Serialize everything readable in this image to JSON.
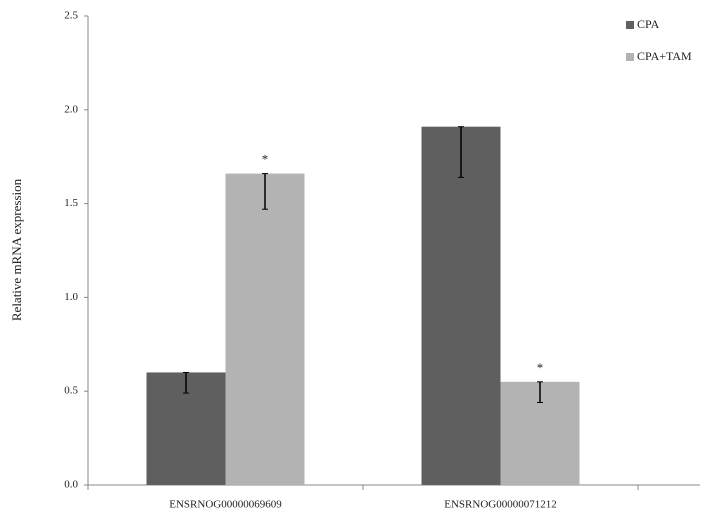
{
  "chart_data": {
    "type": "bar",
    "y_label": "Relative  mRNA expression",
    "categories": [
      "ENSRNOG00000069609",
      "ENSRNOG00000071212"
    ],
    "series": [
      {
        "name": "CPA",
        "color": "#5f5f5f",
        "values": [
          0.6,
          1.91
        ],
        "errors": [
          0.11,
          0.27
        ]
      },
      {
        "name": "CPA+TAM",
        "color": "#b3b3b3",
        "values": [
          1.66,
          0.55
        ],
        "errors": [
          0.19,
          0.11
        ],
        "markers": [
          "*",
          "*"
        ]
      }
    ],
    "ylim": [
      0,
      2.5
    ],
    "yticks": [
      {
        "value": 0,
        "label": "0.0"
      },
      0.5,
      {
        "value": 1,
        "label": "1.0"
      },
      1.5,
      {
        "value": 2,
        "label": "2.0"
      },
      2.5
    ],
    "legend": "top-right"
  }
}
